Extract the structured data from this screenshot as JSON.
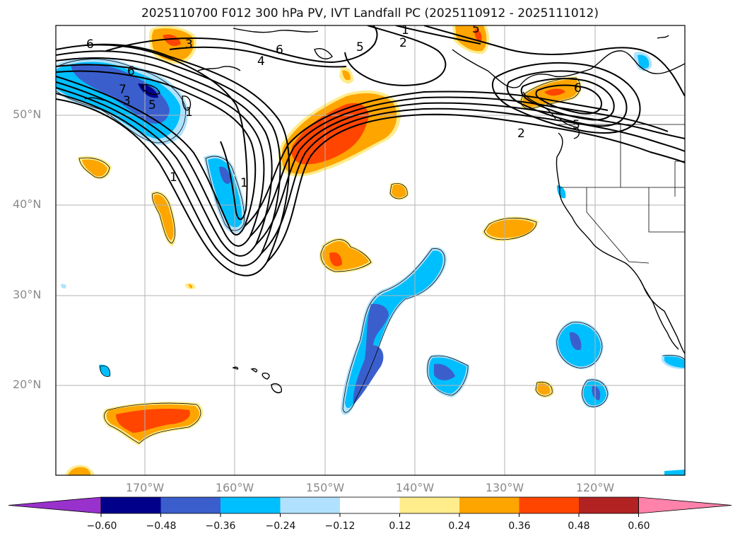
{
  "title": "2025110700 F012 300 hPa PV, IVT Landfall PC (2025110912 - 2025111012)",
  "lat_labels": [
    "50°N",
    "40°N",
    "30°N",
    "20°N"
  ],
  "lon_labels": [
    "170°W",
    "160°W",
    "150°W",
    "140°W",
    "130°W",
    "120°W"
  ],
  "contour_labels": [
    "6",
    "3",
    "6",
    "5",
    "1",
    "2",
    "6",
    "4",
    "3",
    "5",
    "1",
    "5",
    "2",
    "1",
    "1",
    "6",
    "5",
    "7"
  ],
  "colorbar": {
    "ticks": [
      "−0.60",
      "−0.48",
      "−0.36",
      "−0.24",
      "−0.12",
      "0.12",
      "0.24",
      "0.36",
      "0.48",
      "0.60"
    ],
    "colors": [
      "#9932cc",
      "#00008b",
      "#3a5fcd",
      "#00bfff",
      "#b0e2ff",
      "#ffffff",
      "#ffec8b",
      "#ffa500",
      "#ff4500",
      "#b22222",
      "#ff82ab"
    ]
  }
}
